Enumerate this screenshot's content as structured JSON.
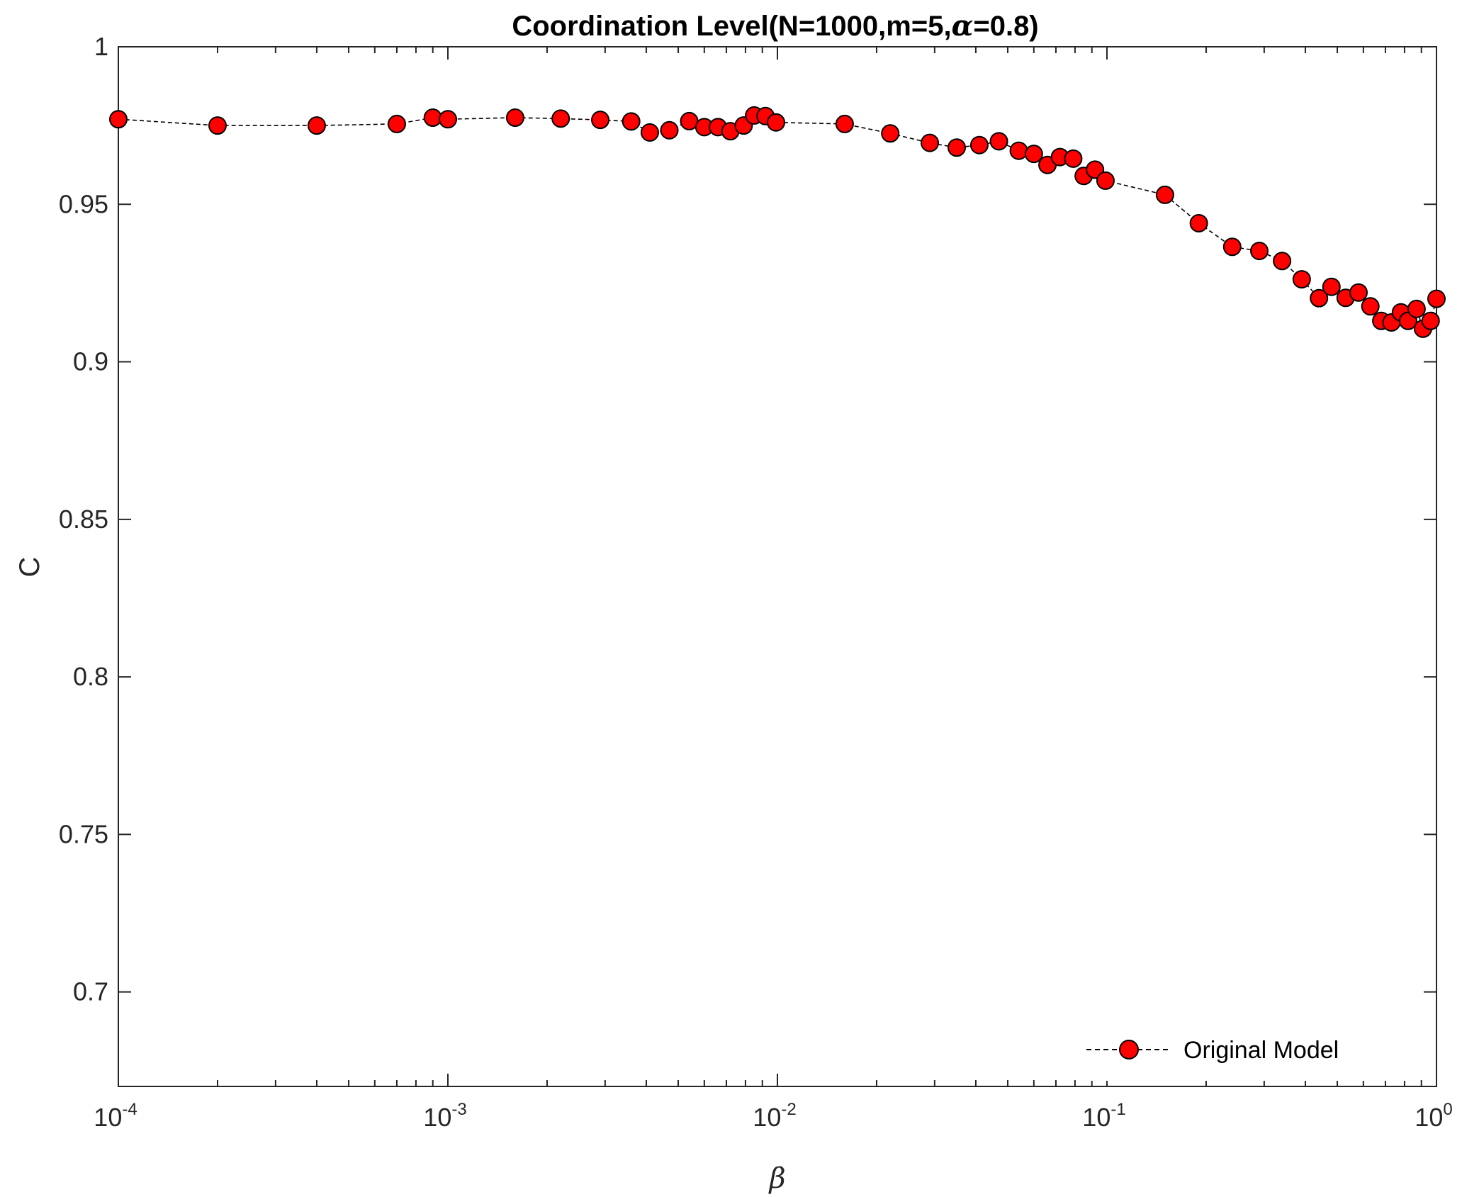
{
  "chart_data": {
    "type": "line",
    "title": {
      "prefix": "Coordination Level(N=1000,m=5,",
      "symbol": "α",
      "suffix": "=0.8)"
    },
    "xlabel": "β",
    "ylabel": "C",
    "xscale": "log",
    "xlim": [
      0.0001,
      1
    ],
    "ylim": [
      0.67,
      1.0
    ],
    "xticks": [
      {
        "value": 0.0001,
        "base": "10",
        "exp": "-4"
      },
      {
        "value": 0.001,
        "base": "10",
        "exp": "-3"
      },
      {
        "value": 0.01,
        "base": "10",
        "exp": "-2"
      },
      {
        "value": 0.1,
        "base": "10",
        "exp": "-1"
      },
      {
        "value": 1,
        "base": "10",
        "exp": "0"
      }
    ],
    "yticks": [
      {
        "value": 0.7,
        "label": "0.7"
      },
      {
        "value": 0.75,
        "label": "0.75"
      },
      {
        "value": 0.8,
        "label": "0.8"
      },
      {
        "value": 0.85,
        "label": "0.85"
      },
      {
        "value": 0.9,
        "label": "0.9"
      },
      {
        "value": 0.95,
        "label": "0.95"
      },
      {
        "value": 1.0,
        "label": "1"
      }
    ],
    "grid": false,
    "legend": {
      "position": "bottom-right"
    },
    "series": [
      {
        "name": "Original Model",
        "marker": "circle",
        "line_style": "dashed",
        "marker_color": "#ff0000",
        "line_color": "#000000",
        "x": [
          0.0001,
          0.0002,
          0.0004,
          0.0007,
          0.0009,
          0.001,
          0.0016,
          0.0022,
          0.0029,
          0.0036,
          0.0041,
          0.0047,
          0.0054,
          0.006,
          0.0066,
          0.0072,
          0.0079,
          0.0085,
          0.0092,
          0.0099,
          0.016,
          0.022,
          0.029,
          0.035,
          0.041,
          0.047,
          0.054,
          0.06,
          0.066,
          0.072,
          0.079,
          0.085,
          0.092,
          0.099,
          0.15,
          0.19,
          0.24,
          0.29,
          0.34,
          0.39,
          0.44,
          0.48,
          0.53,
          0.58,
          0.63,
          0.68,
          0.73,
          0.78,
          0.82,
          0.87,
          0.91,
          0.96,
          1.0
        ],
        "y": [
          0.977,
          0.975,
          0.975,
          0.9755,
          0.9775,
          0.977,
          0.9775,
          0.9772,
          0.9768,
          0.9763,
          0.9728,
          0.9735,
          0.9764,
          0.9745,
          0.9745,
          0.9732,
          0.975,
          0.9782,
          0.978,
          0.976,
          0.9755,
          0.9725,
          0.9695,
          0.968,
          0.9688,
          0.97,
          0.967,
          0.966,
          0.9625,
          0.965,
          0.9645,
          0.959,
          0.961,
          0.9575,
          0.953,
          0.944,
          0.9365,
          0.9352,
          0.932,
          0.9262,
          0.9202,
          0.9238,
          0.9203,
          0.922,
          0.9176,
          0.913,
          0.9125,
          0.9157,
          0.913,
          0.9168,
          0.9105,
          0.913,
          0.92
        ]
      }
    ]
  }
}
